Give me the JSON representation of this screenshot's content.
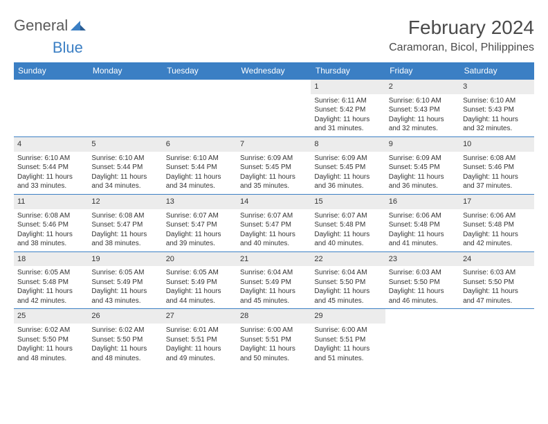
{
  "branding": {
    "word1": "General",
    "word2": "Blue",
    "icon_color": "#3b7fc4",
    "text_gray": "#5a5a5a"
  },
  "header": {
    "month_title": "February 2024",
    "location": "Caramoran, Bicol, Philippines"
  },
  "style": {
    "header_bg": "#3b7fc4",
    "header_fg": "#ffffff",
    "row_border": "#3b7fc4",
    "daynum_bg": "#ececec",
    "body_text": "#333333",
    "title_color": "#4a4a4a",
    "month_fontsize": 28,
    "location_fontsize": 16,
    "dayhdr_fontsize": 12,
    "cell_fontsize": 10
  },
  "days_of_week": [
    "Sunday",
    "Monday",
    "Tuesday",
    "Wednesday",
    "Thursday",
    "Friday",
    "Saturday"
  ],
  "weeks": [
    [
      {
        "n": "",
        "sunrise": "",
        "sunset": "",
        "daylight1": "",
        "daylight2": ""
      },
      {
        "n": "",
        "sunrise": "",
        "sunset": "",
        "daylight1": "",
        "daylight2": ""
      },
      {
        "n": "",
        "sunrise": "",
        "sunset": "",
        "daylight1": "",
        "daylight2": ""
      },
      {
        "n": "",
        "sunrise": "",
        "sunset": "",
        "daylight1": "",
        "daylight2": ""
      },
      {
        "n": "1",
        "sunrise": "Sunrise: 6:11 AM",
        "sunset": "Sunset: 5:42 PM",
        "daylight1": "Daylight: 11 hours",
        "daylight2": "and 31 minutes."
      },
      {
        "n": "2",
        "sunrise": "Sunrise: 6:10 AM",
        "sunset": "Sunset: 5:43 PM",
        "daylight1": "Daylight: 11 hours",
        "daylight2": "and 32 minutes."
      },
      {
        "n": "3",
        "sunrise": "Sunrise: 6:10 AM",
        "sunset": "Sunset: 5:43 PM",
        "daylight1": "Daylight: 11 hours",
        "daylight2": "and 32 minutes."
      }
    ],
    [
      {
        "n": "4",
        "sunrise": "Sunrise: 6:10 AM",
        "sunset": "Sunset: 5:44 PM",
        "daylight1": "Daylight: 11 hours",
        "daylight2": "and 33 minutes."
      },
      {
        "n": "5",
        "sunrise": "Sunrise: 6:10 AM",
        "sunset": "Sunset: 5:44 PM",
        "daylight1": "Daylight: 11 hours",
        "daylight2": "and 34 minutes."
      },
      {
        "n": "6",
        "sunrise": "Sunrise: 6:10 AM",
        "sunset": "Sunset: 5:44 PM",
        "daylight1": "Daylight: 11 hours",
        "daylight2": "and 34 minutes."
      },
      {
        "n": "7",
        "sunrise": "Sunrise: 6:09 AM",
        "sunset": "Sunset: 5:45 PM",
        "daylight1": "Daylight: 11 hours",
        "daylight2": "and 35 minutes."
      },
      {
        "n": "8",
        "sunrise": "Sunrise: 6:09 AM",
        "sunset": "Sunset: 5:45 PM",
        "daylight1": "Daylight: 11 hours",
        "daylight2": "and 36 minutes."
      },
      {
        "n": "9",
        "sunrise": "Sunrise: 6:09 AM",
        "sunset": "Sunset: 5:45 PM",
        "daylight1": "Daylight: 11 hours",
        "daylight2": "and 36 minutes."
      },
      {
        "n": "10",
        "sunrise": "Sunrise: 6:08 AM",
        "sunset": "Sunset: 5:46 PM",
        "daylight1": "Daylight: 11 hours",
        "daylight2": "and 37 minutes."
      }
    ],
    [
      {
        "n": "11",
        "sunrise": "Sunrise: 6:08 AM",
        "sunset": "Sunset: 5:46 PM",
        "daylight1": "Daylight: 11 hours",
        "daylight2": "and 38 minutes."
      },
      {
        "n": "12",
        "sunrise": "Sunrise: 6:08 AM",
        "sunset": "Sunset: 5:47 PM",
        "daylight1": "Daylight: 11 hours",
        "daylight2": "and 38 minutes."
      },
      {
        "n": "13",
        "sunrise": "Sunrise: 6:07 AM",
        "sunset": "Sunset: 5:47 PM",
        "daylight1": "Daylight: 11 hours",
        "daylight2": "and 39 minutes."
      },
      {
        "n": "14",
        "sunrise": "Sunrise: 6:07 AM",
        "sunset": "Sunset: 5:47 PM",
        "daylight1": "Daylight: 11 hours",
        "daylight2": "and 40 minutes."
      },
      {
        "n": "15",
        "sunrise": "Sunrise: 6:07 AM",
        "sunset": "Sunset: 5:48 PM",
        "daylight1": "Daylight: 11 hours",
        "daylight2": "and 40 minutes."
      },
      {
        "n": "16",
        "sunrise": "Sunrise: 6:06 AM",
        "sunset": "Sunset: 5:48 PM",
        "daylight1": "Daylight: 11 hours",
        "daylight2": "and 41 minutes."
      },
      {
        "n": "17",
        "sunrise": "Sunrise: 6:06 AM",
        "sunset": "Sunset: 5:48 PM",
        "daylight1": "Daylight: 11 hours",
        "daylight2": "and 42 minutes."
      }
    ],
    [
      {
        "n": "18",
        "sunrise": "Sunrise: 6:05 AM",
        "sunset": "Sunset: 5:48 PM",
        "daylight1": "Daylight: 11 hours",
        "daylight2": "and 42 minutes."
      },
      {
        "n": "19",
        "sunrise": "Sunrise: 6:05 AM",
        "sunset": "Sunset: 5:49 PM",
        "daylight1": "Daylight: 11 hours",
        "daylight2": "and 43 minutes."
      },
      {
        "n": "20",
        "sunrise": "Sunrise: 6:05 AM",
        "sunset": "Sunset: 5:49 PM",
        "daylight1": "Daylight: 11 hours",
        "daylight2": "and 44 minutes."
      },
      {
        "n": "21",
        "sunrise": "Sunrise: 6:04 AM",
        "sunset": "Sunset: 5:49 PM",
        "daylight1": "Daylight: 11 hours",
        "daylight2": "and 45 minutes."
      },
      {
        "n": "22",
        "sunrise": "Sunrise: 6:04 AM",
        "sunset": "Sunset: 5:50 PM",
        "daylight1": "Daylight: 11 hours",
        "daylight2": "and 45 minutes."
      },
      {
        "n": "23",
        "sunrise": "Sunrise: 6:03 AM",
        "sunset": "Sunset: 5:50 PM",
        "daylight1": "Daylight: 11 hours",
        "daylight2": "and 46 minutes."
      },
      {
        "n": "24",
        "sunrise": "Sunrise: 6:03 AM",
        "sunset": "Sunset: 5:50 PM",
        "daylight1": "Daylight: 11 hours",
        "daylight2": "and 47 minutes."
      }
    ],
    [
      {
        "n": "25",
        "sunrise": "Sunrise: 6:02 AM",
        "sunset": "Sunset: 5:50 PM",
        "daylight1": "Daylight: 11 hours",
        "daylight2": "and 48 minutes."
      },
      {
        "n": "26",
        "sunrise": "Sunrise: 6:02 AM",
        "sunset": "Sunset: 5:50 PM",
        "daylight1": "Daylight: 11 hours",
        "daylight2": "and 48 minutes."
      },
      {
        "n": "27",
        "sunrise": "Sunrise: 6:01 AM",
        "sunset": "Sunset: 5:51 PM",
        "daylight1": "Daylight: 11 hours",
        "daylight2": "and 49 minutes."
      },
      {
        "n": "28",
        "sunrise": "Sunrise: 6:00 AM",
        "sunset": "Sunset: 5:51 PM",
        "daylight1": "Daylight: 11 hours",
        "daylight2": "and 50 minutes."
      },
      {
        "n": "29",
        "sunrise": "Sunrise: 6:00 AM",
        "sunset": "Sunset: 5:51 PM",
        "daylight1": "Daylight: 11 hours",
        "daylight2": "and 51 minutes."
      },
      {
        "n": "",
        "sunrise": "",
        "sunset": "",
        "daylight1": "",
        "daylight2": ""
      },
      {
        "n": "",
        "sunrise": "",
        "sunset": "",
        "daylight1": "",
        "daylight2": ""
      }
    ]
  ]
}
